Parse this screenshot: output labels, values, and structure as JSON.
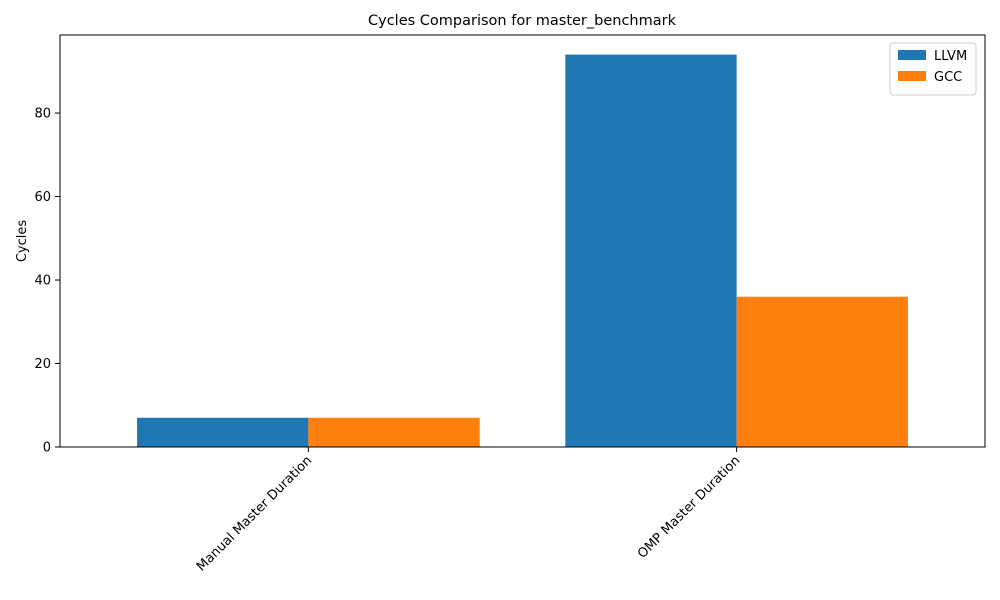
{
  "chart_data": {
    "type": "bar",
    "title": "Cycles Comparison for master_benchmark",
    "xlabel": "",
    "ylabel": "Cycles",
    "categories": [
      "Manual Master Duration",
      "OMP Master Duration"
    ],
    "series": [
      {
        "name": "LLVM",
        "values": [
          7,
          94
        ],
        "color": "#1f77b4"
      },
      {
        "name": "GCC",
        "values": [
          7,
          36
        ],
        "color": "#ff7f0e"
      }
    ],
    "ylim": [
      0,
      98.7
    ],
    "yticks": [
      0,
      20,
      40,
      60,
      80
    ],
    "legend_position": "top-right",
    "grid": false
  }
}
